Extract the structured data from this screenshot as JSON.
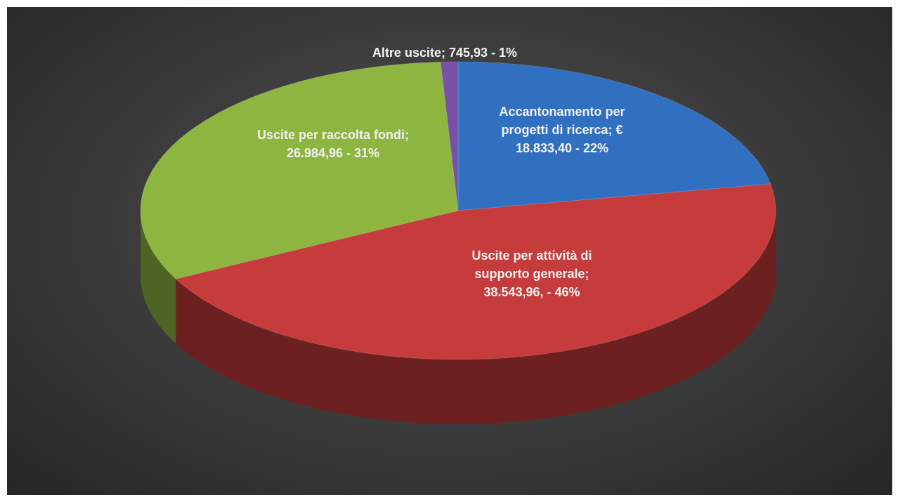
{
  "chart_data": {
    "type": "pie3d",
    "values": [
      18833.4,
      38543.96,
      26984.96,
      745.93
    ],
    "value_labels": [
      "Accantonamento per progetti di ricerca; € 18.833,40 - 22%",
      "Uscite per attività di supporto generale; 38.543,96, - 46%",
      "Uscite per raccolta fondi; 26.984,96 - 31%",
      "Altre uscite; 745,93 - 1%"
    ],
    "colors": [
      "#3170c0",
      "#c63b3b",
      "#8db53f",
      "#7b4fa6"
    ]
  }
}
